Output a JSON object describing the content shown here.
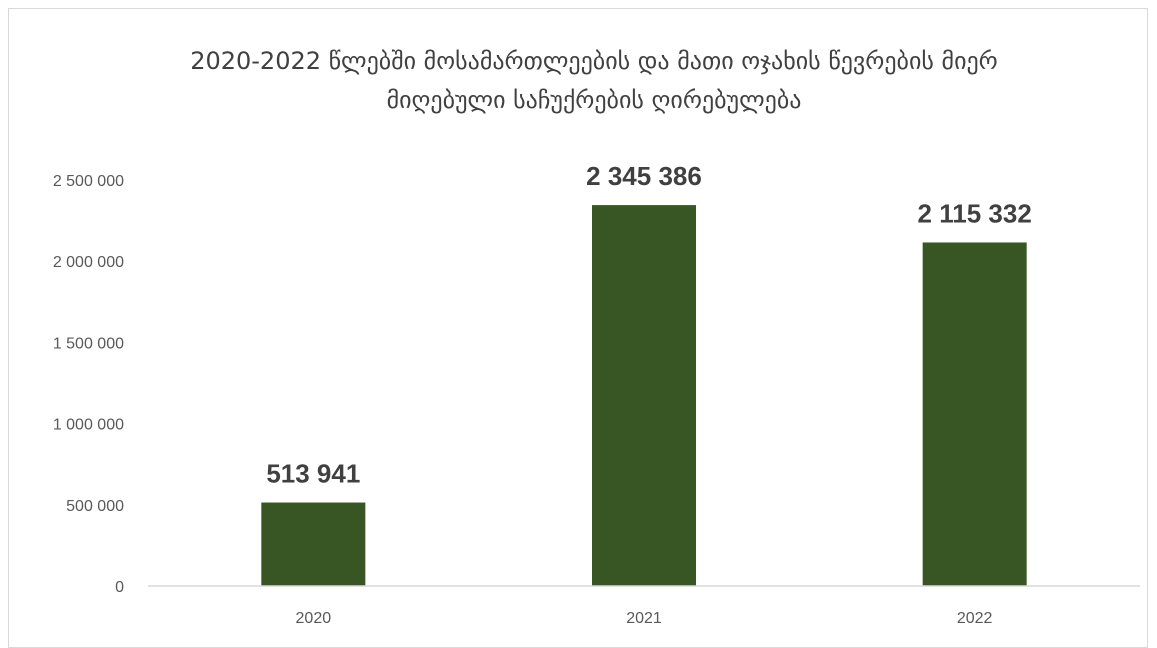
{
  "chart_data": {
    "type": "bar",
    "title_lines": [
      "2020-2022 წლებში მოსამართლეების და მათი ოჯახის წევრების მიერ",
      "მიღებული საჩუქრების ღირებულება"
    ],
    "categories": [
      "2020",
      "2021",
      "2022"
    ],
    "values": [
      513941,
      2345386,
      2115332
    ],
    "data_labels": [
      "513 941",
      "2 345 386",
      "2 115 332"
    ],
    "y_ticks": [
      0,
      500000,
      1000000,
      1500000,
      2000000,
      2500000
    ],
    "y_tick_labels": [
      "0",
      "500 000",
      "1 000 000",
      "1 500 000",
      "2 000 000",
      "2 500 000"
    ],
    "ylim": [
      0,
      2500000
    ],
    "grid": false,
    "legend": "none",
    "bar_color": "#375623",
    "axis_color": "#d9d9d9"
  }
}
